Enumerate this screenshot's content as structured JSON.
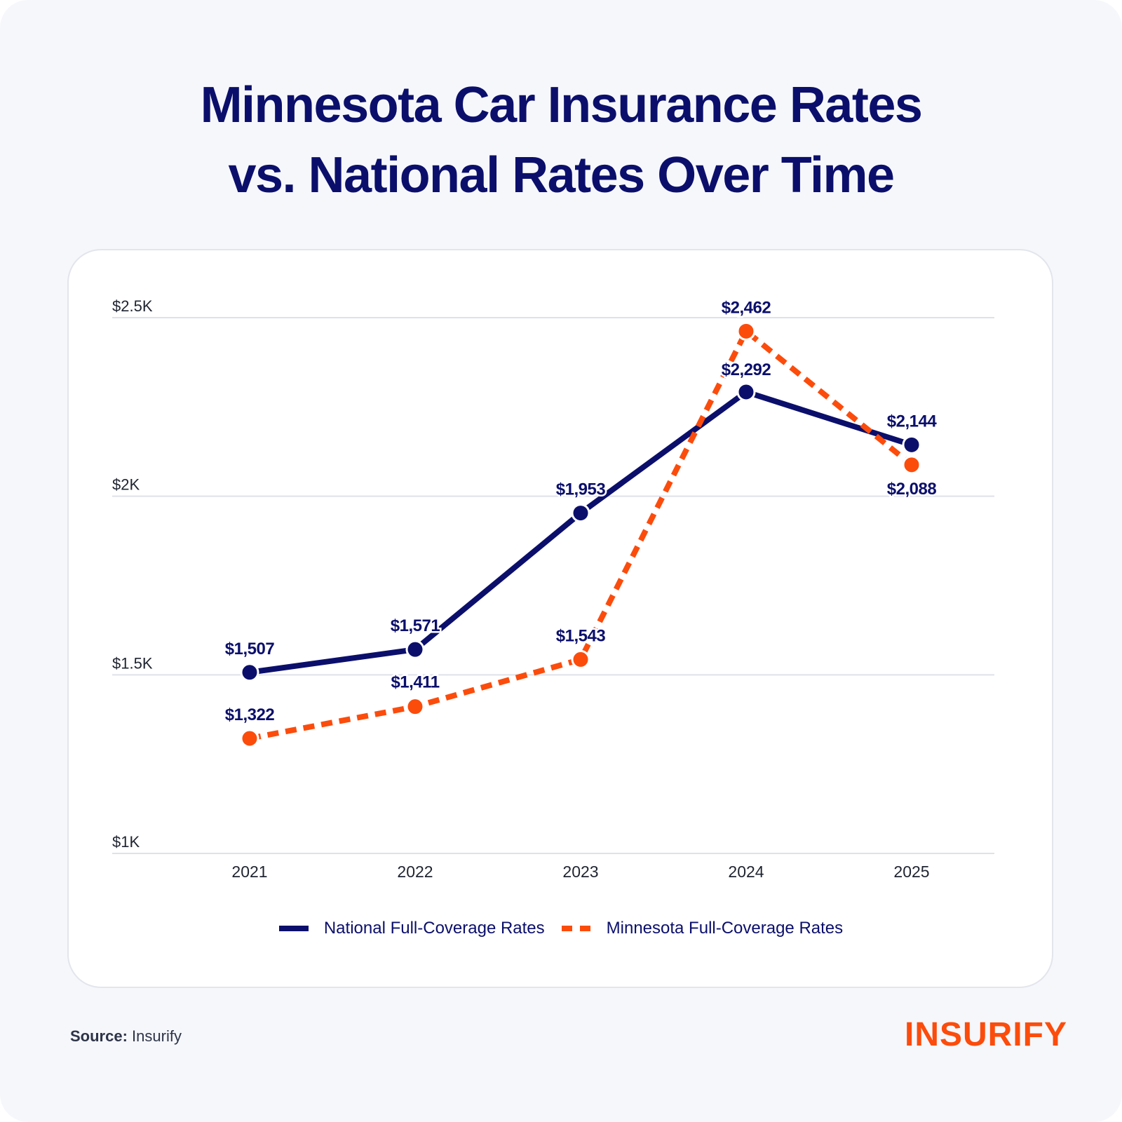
{
  "title_line1": "Minnesota Car Insurance Rates",
  "title_line2": "vs. National Rates Over Time",
  "source_label": "Source:",
  "source_value": "Insurify",
  "logo_text": "INSURIFY",
  "colors": {
    "national": "#0b0f6b",
    "minnesota": "#fc4c0c",
    "grid": "#dfe1ea"
  },
  "legend": [
    {
      "name": "National Full-Coverage Rates",
      "style": "solid"
    },
    {
      "name": "Minnesota Full-Coverage Rates",
      "style": "dashed"
    }
  ],
  "chart_data": {
    "type": "line",
    "title": "Minnesota Car Insurance Rates vs. National Rates Over Time",
    "xlabel": "",
    "ylabel": "",
    "x": [
      "2021",
      "2022",
      "2023",
      "2024",
      "2025"
    ],
    "ylim": [
      1000,
      2500
    ],
    "yticks": [
      1000,
      1500,
      2000,
      2500
    ],
    "ytick_labels": [
      "$1K",
      "$1.5K",
      "$2K",
      "$2.5K"
    ],
    "grid": true,
    "legend_position": "bottom",
    "series": [
      {
        "name": "National Full-Coverage Rates",
        "values": [
          1507,
          1571,
          1953,
          2292,
          2144
        ],
        "labels": [
          "$1,507",
          "$1,571",
          "$1,953",
          "$2,292",
          "$2,144"
        ],
        "line_style": "solid"
      },
      {
        "name": "Minnesota Full-Coverage Rates",
        "values": [
          1322,
          1411,
          1543,
          2462,
          2088
        ],
        "labels": [
          "$1,322",
          "$1,411",
          "$1,543",
          "$2,462",
          "$2,088"
        ],
        "line_style": "dashed"
      }
    ]
  }
}
